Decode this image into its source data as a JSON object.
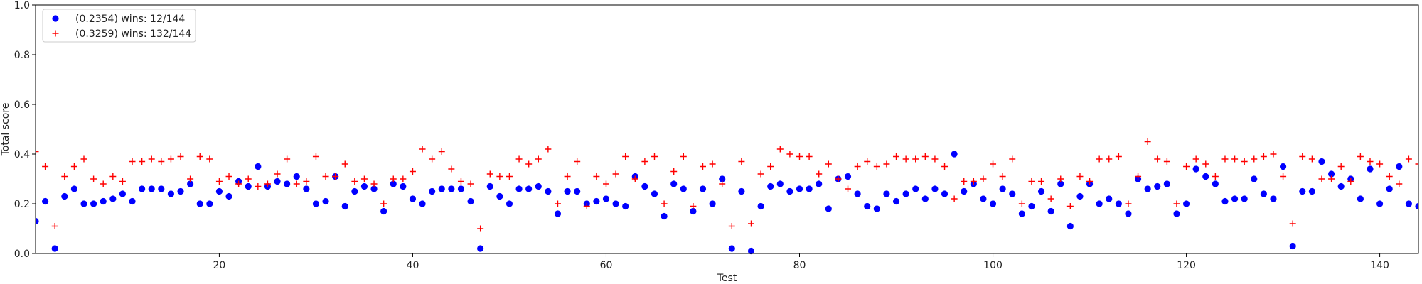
{
  "chart_data": {
    "type": "scatter",
    "title": "",
    "xlabel": "Test",
    "ylabel": "Total score",
    "xlim": [
      1,
      144
    ],
    "ylim": [
      0,
      1.0
    ],
    "xticks": [
      20,
      40,
      60,
      80,
      100,
      120,
      140
    ],
    "yticks": [
      0.0,
      0.2,
      0.4,
      0.6,
      0.8,
      1.0
    ],
    "xtick_labels": [
      "20",
      "40",
      "60",
      "80",
      "100",
      "120",
      "140"
    ],
    "ytick_labels": [
      "0.0",
      "0.2",
      "0.4",
      "0.6",
      "0.8",
      "1.0"
    ],
    "grid": false,
    "legend_position": "top-left",
    "series": [
      {
        "name": "(0.2354) wins: 12/144",
        "marker": "circle",
        "color": "#0000ff",
        "x": [
          1,
          2,
          3,
          4,
          5,
          6,
          7,
          8,
          9,
          10,
          11,
          12,
          13,
          14,
          15,
          16,
          17,
          18,
          19,
          20,
          21,
          22,
          23,
          24,
          25,
          26,
          27,
          28,
          29,
          30,
          31,
          32,
          33,
          34,
          35,
          36,
          37,
          38,
          39,
          40,
          41,
          42,
          43,
          44,
          45,
          46,
          47,
          48,
          49,
          50,
          51,
          52,
          53,
          54,
          55,
          56,
          57,
          58,
          59,
          60,
          61,
          62,
          63,
          64,
          65,
          66,
          67,
          68,
          69,
          70,
          71,
          72,
          73,
          74,
          75,
          76,
          77,
          78,
          79,
          80,
          81,
          82,
          83,
          84,
          85,
          86,
          87,
          88,
          89,
          90,
          91,
          92,
          93,
          94,
          95,
          96,
          97,
          98,
          99,
          100,
          101,
          102,
          103,
          104,
          105,
          106,
          107,
          108,
          109,
          110,
          111,
          112,
          113,
          114,
          115,
          116,
          117,
          118,
          119,
          120,
          121,
          122,
          123,
          124,
          125,
          126,
          127,
          128,
          129,
          130,
          131,
          132,
          133,
          134,
          135,
          136,
          137,
          138,
          139,
          140,
          141,
          142,
          143,
          144
        ],
        "y": [
          0.13,
          0.21,
          0.02,
          0.23,
          0.26,
          0.2,
          0.2,
          0.21,
          0.22,
          0.24,
          0.21,
          0.26,
          0.26,
          0.26,
          0.24,
          0.25,
          0.28,
          0.2,
          0.2,
          0.25,
          0.23,
          0.29,
          0.27,
          0.35,
          0.27,
          0.29,
          0.28,
          0.31,
          0.26,
          0.2,
          0.21,
          0.31,
          0.19,
          0.25,
          0.27,
          0.26,
          0.17,
          0.28,
          0.27,
          0.22,
          0.2,
          0.25,
          0.26,
          0.26,
          0.26,
          0.21,
          0.02,
          0.27,
          0.23,
          0.2,
          0.26,
          0.26,
          0.27,
          0.25,
          0.16,
          0.25,
          0.25,
          0.2,
          0.21,
          0.22,
          0.2,
          0.19,
          0.31,
          0.27,
          0.24,
          0.15,
          0.28,
          0.26,
          0.17,
          0.26,
          0.2,
          0.3,
          0.02,
          0.25,
          0.01,
          0.19,
          0.27,
          0.28,
          0.25,
          0.26,
          0.26,
          0.28,
          0.18,
          0.3,
          0.31,
          0.24,
          0.19,
          0.18,
          0.24,
          0.21,
          0.24,
          0.26,
          0.22,
          0.26,
          0.24,
          0.4,
          0.25,
          0.28,
          0.22,
          0.2,
          0.26,
          0.24,
          0.16,
          0.19,
          0.25,
          0.17,
          0.28,
          0.11,
          0.23,
          0.28,
          0.2,
          0.22,
          0.2,
          0.16,
          0.3,
          0.26,
          0.27,
          0.28,
          0.16,
          0.2,
          0.34,
          0.31,
          0.28,
          0.21,
          0.22,
          0.22,
          0.3,
          0.24,
          0.22,
          0.35,
          0.03,
          0.25,
          0.25,
          0.37,
          0.32,
          0.27,
          0.3,
          0.22,
          0.34,
          0.2,
          0.26,
          0.35,
          0.2,
          0.19
        ]
      },
      {
        "name": "(0.3259) wins: 132/144",
        "marker": "plus",
        "color": "#ff0000",
        "x": [
          1,
          2,
          3,
          4,
          5,
          6,
          7,
          8,
          9,
          10,
          11,
          12,
          13,
          14,
          15,
          16,
          17,
          18,
          19,
          20,
          21,
          22,
          23,
          24,
          25,
          26,
          27,
          28,
          29,
          30,
          31,
          32,
          33,
          34,
          35,
          36,
          37,
          38,
          39,
          40,
          41,
          42,
          43,
          44,
          45,
          46,
          47,
          48,
          49,
          50,
          51,
          52,
          53,
          54,
          55,
          56,
          57,
          58,
          59,
          60,
          61,
          62,
          63,
          64,
          65,
          66,
          67,
          68,
          69,
          70,
          71,
          72,
          73,
          74,
          75,
          76,
          77,
          78,
          79,
          80,
          81,
          82,
          83,
          84,
          85,
          86,
          87,
          88,
          89,
          90,
          91,
          92,
          93,
          94,
          95,
          96,
          97,
          98,
          99,
          100,
          101,
          102,
          103,
          104,
          105,
          106,
          107,
          108,
          109,
          110,
          111,
          112,
          113,
          114,
          115,
          116,
          117,
          118,
          119,
          120,
          121,
          122,
          123,
          124,
          125,
          126,
          127,
          128,
          129,
          130,
          131,
          132,
          133,
          134,
          135,
          136,
          137,
          138,
          139,
          140,
          141,
          142,
          143,
          144
        ],
        "y": [
          0.41,
          0.35,
          0.11,
          0.31,
          0.35,
          0.38,
          0.3,
          0.28,
          0.31,
          0.29,
          0.37,
          0.37,
          0.38,
          0.37,
          0.38,
          0.39,
          0.3,
          0.39,
          0.38,
          0.29,
          0.31,
          0.28,
          0.3,
          0.27,
          0.28,
          0.32,
          0.38,
          0.28,
          0.29,
          0.39,
          0.31,
          0.31,
          0.36,
          0.29,
          0.3,
          0.28,
          0.2,
          0.3,
          0.3,
          0.33,
          0.42,
          0.38,
          0.41,
          0.34,
          0.29,
          0.28,
          0.1,
          0.32,
          0.31,
          0.31,
          0.38,
          0.36,
          0.38,
          0.42,
          0.2,
          0.31,
          0.37,
          0.19,
          0.31,
          0.28,
          0.32,
          0.39,
          0.3,
          0.37,
          0.39,
          0.2,
          0.33,
          0.39,
          0.19,
          0.35,
          0.36,
          0.28,
          0.11,
          0.37,
          0.12,
          0.32,
          0.35,
          0.42,
          0.4,
          0.39,
          0.39,
          0.32,
          0.36,
          0.3,
          0.26,
          0.35,
          0.37,
          0.35,
          0.36,
          0.39,
          0.38,
          0.38,
          0.39,
          0.38,
          0.35,
          0.22,
          0.29,
          0.29,
          0.3,
          0.36,
          0.31,
          0.38,
          0.2,
          0.29,
          0.29,
          0.22,
          0.3,
          0.19,
          0.31,
          0.29,
          0.38,
          0.38,
          0.39,
          0.2,
          0.31,
          0.45,
          0.38,
          0.37,
          0.2,
          0.35,
          0.38,
          0.36,
          0.31,
          0.38,
          0.38,
          0.37,
          0.38,
          0.39,
          0.4,
          0.31,
          0.12,
          0.39,
          0.38,
          0.3,
          0.3,
          0.35,
          0.29,
          0.39,
          0.37,
          0.36,
          0.31,
          0.28,
          0.38,
          0.36
        ]
      }
    ]
  }
}
